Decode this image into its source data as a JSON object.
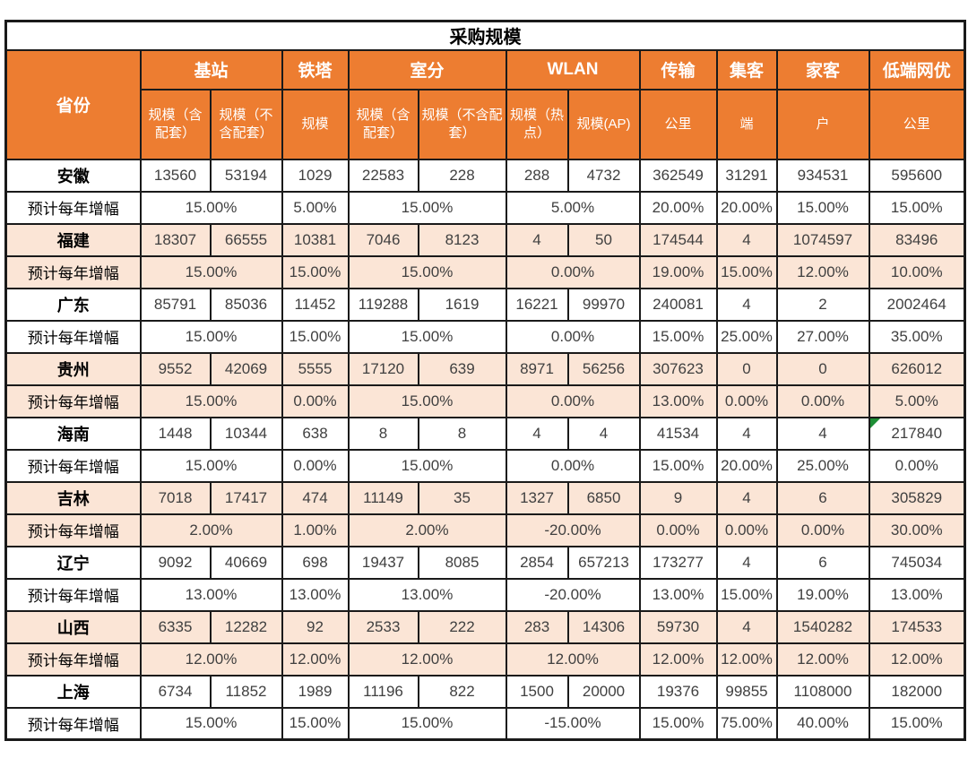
{
  "title": "采购规模",
  "growth_label": "预计每年增幅",
  "header": {
    "province": "省份",
    "groups": [
      {
        "label": "基站",
        "span": 2
      },
      {
        "label": "铁塔",
        "span": 1
      },
      {
        "label": "室分",
        "span": 2
      },
      {
        "label": "WLAN",
        "span": 2
      },
      {
        "label": "传输",
        "span": 1
      },
      {
        "label": "集客",
        "span": 1
      },
      {
        "label": "家客",
        "span": 1
      },
      {
        "label": "低端网优",
        "span": 1
      }
    ],
    "subs": [
      "规模（含配套）",
      "规模（不含配套）",
      "规模",
      "规模（含配套）",
      "规模（不含配套）",
      "规模（热点）",
      "规模(AP)",
      "公里",
      "端",
      "户",
      "公里"
    ]
  },
  "provinces": [
    {
      "name": "安徽",
      "values": [
        "13560",
        "53194",
        "1029",
        "22583",
        "228",
        "288",
        "4732",
        "362549",
        "31291",
        "934531",
        "595600"
      ],
      "growth": [
        "15.00%",
        "5.00%",
        "15.00%",
        "5.00%",
        "20.00%",
        "20.00%",
        "15.00%",
        "15.00%"
      ]
    },
    {
      "name": "福建",
      "values": [
        "18307",
        "66555",
        "10381",
        "7046",
        "8123",
        "4",
        "50",
        "174544",
        "4",
        "1074597",
        "83496"
      ],
      "growth": [
        "15.00%",
        "15.00%",
        "15.00%",
        "0.00%",
        "19.00%",
        "15.00%",
        "12.00%",
        "10.00%"
      ]
    },
    {
      "name": "广东",
      "values": [
        "85791",
        "85036",
        "11452",
        "119288",
        "1619",
        "16221",
        "99970",
        "240081",
        "4",
        "2",
        "2002464"
      ],
      "growth": [
        "15.00%",
        "15.00%",
        "15.00%",
        "0.00%",
        "15.00%",
        "25.00%",
        "27.00%",
        "35.00%"
      ]
    },
    {
      "name": "贵州",
      "values": [
        "9552",
        "42069",
        "5555",
        "17120",
        "639",
        "8971",
        "56256",
        "307623",
        "0",
        "0",
        "626012"
      ],
      "growth": [
        "15.00%",
        "0.00%",
        "15.00%",
        "0.00%",
        "13.00%",
        "0.00%",
        "0.00%",
        "5.00%"
      ]
    },
    {
      "name": "海南",
      "values": [
        "1448",
        "10344",
        "638",
        "8",
        "8",
        "4",
        "4",
        "41534",
        "4",
        "4",
        "217840"
      ],
      "growth": [
        "15.00%",
        "0.00%",
        "15.00%",
        "0.00%",
        "15.00%",
        "20.00%",
        "25.00%",
        "0.00%"
      ],
      "comment_marker_col": 10
    },
    {
      "name": "吉林",
      "values": [
        "7018",
        "17417",
        "474",
        "11149",
        "35",
        "1327",
        "6850",
        "9",
        "4",
        "6",
        "305829"
      ],
      "growth": [
        "2.00%",
        "1.00%",
        "2.00%",
        "-20.00%",
        "0.00%",
        "0.00%",
        "0.00%",
        "30.00%"
      ]
    },
    {
      "name": "辽宁",
      "values": [
        "9092",
        "40669",
        "698",
        "19437",
        "8085",
        "2854",
        "657213",
        "173277",
        "4",
        "6",
        "745034"
      ],
      "growth": [
        "13.00%",
        "13.00%",
        "13.00%",
        "-20.00%",
        "13.00%",
        "15.00%",
        "19.00%",
        "13.00%"
      ]
    },
    {
      "name": "山西",
      "values": [
        "6335",
        "12282",
        "92",
        "2533",
        "222",
        "283",
        "14306",
        "59730",
        "4",
        "1540282",
        "174533"
      ],
      "growth": [
        "12.00%",
        "12.00%",
        "12.00%",
        "12.00%",
        "12.00%",
        "12.00%",
        "12.00%",
        "12.00%"
      ]
    },
    {
      "name": "上海",
      "values": [
        "6734",
        "11852",
        "1989",
        "11196",
        "822",
        "1500",
        "20000",
        "19376",
        "99855",
        "1108000",
        "182000"
      ],
      "growth": [
        "15.00%",
        "15.00%",
        "15.00%",
        "-15.00%",
        "15.00%",
        "75.00%",
        "40.00%",
        "15.00%"
      ]
    }
  ],
  "colors": {
    "header_bg": "#ED7D31",
    "alt_row_bg": "#FBE5D6",
    "border": "#1A1A1A",
    "marker_green": "#1D8F35",
    "header_text": "#FFFFFF",
    "value_text": "#404040"
  }
}
